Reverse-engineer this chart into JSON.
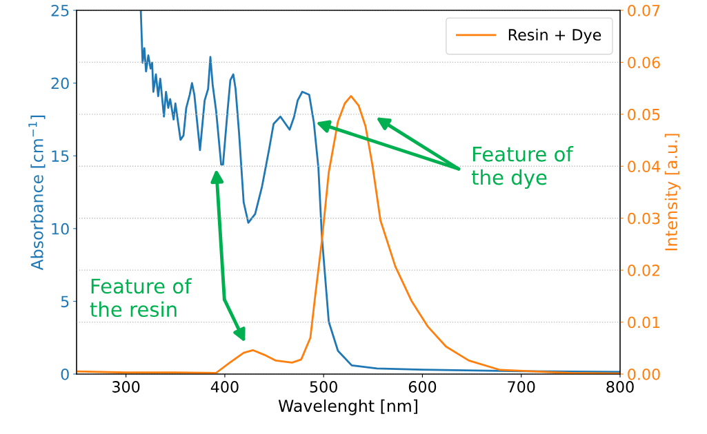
{
  "chart_data": {
    "type": "line",
    "xlabel": "Wavelenght [nm]",
    "ylabel": "Absorbance [cm$^{−1}$]",
    "y2label": "Intensity [a.u.]",
    "xlim": [
      250,
      800
    ],
    "xticks": [
      300,
      400,
      500,
      600,
      700,
      800
    ],
    "ylim": [
      0,
      25
    ],
    "yticks": [
      0,
      5,
      10,
      15,
      20,
      25
    ],
    "y2lim": [
      0,
      0.07
    ],
    "y2ticks": [
      {
        "value": 0,
        "label": "0.00"
      },
      {
        "value": 0.01,
        "label": "0.01"
      },
      {
        "value": 0.02,
        "label": "0.02"
      },
      {
        "value": 0.03,
        "label": "0.03"
      },
      {
        "value": 0.04,
        "label": "0.04"
      },
      {
        "value": 0.05,
        "label": "0.05"
      },
      {
        "value": 0.06,
        "label": "0.06"
      },
      {
        "value": 0.07,
        "label": "0.07"
      }
    ],
    "grid": "y2",
    "legend": "top right",
    "marker": "none",
    "line_style": "solid",
    "series": [
      {
        "color": "#1f77b4",
        "x": [
          315,
          316.8,
          318.6,
          320.3,
          322.6,
          324.9,
          326.5,
          327.7,
          330.3,
          332.6,
          334.7,
          338.4,
          340.5,
          342.8,
          344.7,
          348.2,
          350,
          355.2,
          358.2,
          361,
          364.5,
          366.8,
          369.2,
          374.9,
          379.6,
          383.1,
          385.4,
          387.7,
          391.2,
          396.3,
          398.2,
          402.8,
          405.6,
          408.6,
          410.9,
          414.4,
          419.1,
          423.8,
          430.7,
          437.7,
          444.7,
          449.4,
          456.3,
          465.6,
          470.2,
          473.7,
          478.4,
          485.4,
          490.1,
          494.7,
          498.2,
          505.2,
          514.5,
          528.4,
          554,
          600,
          700,
          800
        ],
        "values": [
          25,
          21.4,
          22.4,
          20.8,
          21.9,
          21.0,
          21.4,
          19.4,
          20.6,
          19.1,
          20.3,
          17.7,
          19.4,
          18.3,
          18.9,
          17.5,
          18.6,
          16.1,
          16.4,
          18.3,
          19.2,
          20.0,
          19.2,
          15.4,
          18.8,
          19.6,
          21.8,
          19.9,
          18.1,
          14.4,
          14.4,
          18.1,
          20.2,
          20.6,
          19.6,
          16.6,
          11.8,
          10.4,
          11.0,
          12.9,
          15.4,
          17.2,
          17.7,
          16.8,
          17.7,
          18.8,
          19.4,
          19.2,
          17.3,
          14.2,
          9.5,
          3.6,
          1.6,
          0.6,
          0.38,
          0.3,
          0.2,
          0.15
        ]
      },
      {
        "name": "Resin + Dye",
        "color": "#ff7f0e",
        "axis": "y2",
        "x": [
          250,
          300,
          350,
          391,
          405.1,
          419.1,
          428.4,
          440,
          451.7,
          468,
          477.3,
          486.6,
          491.2,
          498.2,
          505.2,
          514.5,
          521.5,
          527.7,
          535.4,
          542.4,
          549.4,
          557.5,
          572.6,
          588.9,
          605.2,
          623.8,
          647,
          678.5,
          750,
          800
        ],
        "values": [
          0.0005,
          0.0003,
          0.0003,
          0.0002,
          0.0022,
          0.0041,
          0.0046,
          0.0037,
          0.0026,
          0.0022,
          0.0028,
          0.007,
          0.0146,
          0.0256,
          0.0388,
          0.0486,
          0.0521,
          0.0535,
          0.0517,
          0.0477,
          0.0402,
          0.0296,
          0.0207,
          0.0141,
          0.0092,
          0.0053,
          0.0026,
          0.0008,
          0.0002,
          0.0001
        ]
      }
    ],
    "annotations": [
      {
        "text": "Feature of\nthe dye",
        "x": 492,
        "y": 17.3
      },
      "Feature of\nthe resin"
    ]
  }
}
